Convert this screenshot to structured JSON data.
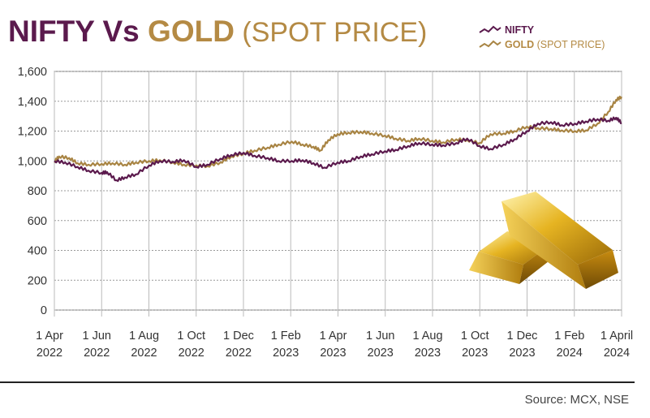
{
  "title": {
    "part1": "NIFTY",
    "part2": " Vs ",
    "part3": "GOLD",
    "part4": " (SPOT PRICE)"
  },
  "legend": {
    "nifty": "NIFTY",
    "gold_main": "GOLD",
    "gold_sub": " (SPOT PRICE)"
  },
  "source": "Source: MCX, NSE",
  "colors": {
    "nifty": "#5b1a4d",
    "gold": "#a88443",
    "grid_horizontal": "#999999",
    "grid_vertical": "#bbbbbb"
  },
  "image": "gold-bars",
  "chart_data": {
    "type": "line",
    "title": "NIFTY Vs GOLD (SPOT PRICE)",
    "xlabel": "",
    "ylabel": "",
    "ylim": [
      0,
      1600
    ],
    "xlim": [
      "2022-04-01",
      "2024-04-01"
    ],
    "y_ticks": [
      "0",
      "200",
      "400",
      "600",
      "800",
      "1,000",
      "1,200",
      "1,400",
      "1,600"
    ],
    "x_ticks": [
      {
        "line1": "1 Apr",
        "line2": "2022"
      },
      {
        "line1": "1 Jun",
        "line2": "2022"
      },
      {
        "line1": "1 Aug",
        "line2": "2022"
      },
      {
        "line1": "1 Oct",
        "line2": "2022"
      },
      {
        "line1": "1 Dec",
        "line2": "2022"
      },
      {
        "line1": "1 Feb",
        "line2": "2023"
      },
      {
        "line1": "1 Apr",
        "line2": "2023"
      },
      {
        "line1": "1 Jun",
        "line2": "2023"
      },
      {
        "line1": "1 Aug",
        "line2": "2023"
      },
      {
        "line1": "1 Oct",
        "line2": "2023"
      },
      {
        "line1": "1 Dec",
        "line2": "2023"
      },
      {
        "line1": "1 Feb",
        "line2": "2024"
      },
      {
        "line1": "1 April",
        "line2": "2024"
      }
    ],
    "grid": true,
    "legend_position": "top-right",
    "series": [
      {
        "name": "NIFTY",
        "points": [
          [
            "2022-04-01",
            1000
          ],
          [
            "2022-04-15",
            990
          ],
          [
            "2022-05-01",
            960
          ],
          [
            "2022-05-15",
            935
          ],
          [
            "2022-06-01",
            920
          ],
          [
            "2022-06-08",
            925
          ],
          [
            "2022-06-20",
            870
          ],
          [
            "2022-07-01",
            890
          ],
          [
            "2022-07-15",
            910
          ],
          [
            "2022-08-01",
            970
          ],
          [
            "2022-08-15",
            1000
          ],
          [
            "2022-09-01",
            995
          ],
          [
            "2022-09-15",
            1005
          ],
          [
            "2022-10-01",
            960
          ],
          [
            "2022-10-15",
            975
          ],
          [
            "2022-11-01",
            1015
          ],
          [
            "2022-11-15",
            1040
          ],
          [
            "2022-12-01",
            1055
          ],
          [
            "2022-12-15",
            1035
          ],
          [
            "2023-01-01",
            1020
          ],
          [
            "2023-01-15",
            1000
          ],
          [
            "2023-02-01",
            1000
          ],
          [
            "2023-02-15",
            1005
          ],
          [
            "2023-03-01",
            985
          ],
          [
            "2023-03-15",
            955
          ],
          [
            "2023-04-01",
            990
          ],
          [
            "2023-04-15",
            1000
          ],
          [
            "2023-05-01",
            1030
          ],
          [
            "2023-05-15",
            1045
          ],
          [
            "2023-06-01",
            1065
          ],
          [
            "2023-06-15",
            1075
          ],
          [
            "2023-07-01",
            1100
          ],
          [
            "2023-07-15",
            1120
          ],
          [
            "2023-08-01",
            1110
          ],
          [
            "2023-08-15",
            1105
          ],
          [
            "2023-09-01",
            1120
          ],
          [
            "2023-09-15",
            1150
          ],
          [
            "2023-10-01",
            1100
          ],
          [
            "2023-10-15",
            1080
          ],
          [
            "2023-11-01",
            1110
          ],
          [
            "2023-11-15",
            1145
          ],
          [
            "2023-12-01",
            1200
          ],
          [
            "2023-12-15",
            1250
          ],
          [
            "2024-01-01",
            1260
          ],
          [
            "2024-01-15",
            1240
          ],
          [
            "2024-02-01",
            1250
          ],
          [
            "2024-02-15",
            1265
          ],
          [
            "2024-03-01",
            1280
          ],
          [
            "2024-03-15",
            1270
          ],
          [
            "2024-03-25",
            1290
          ],
          [
            "2024-04-01",
            1255
          ]
        ]
      },
      {
        "name": "GOLD (SPOT PRICE)",
        "points": [
          [
            "2022-04-01",
            995
          ],
          [
            "2022-04-07",
            1030
          ],
          [
            "2022-04-20",
            1020
          ],
          [
            "2022-05-01",
            985
          ],
          [
            "2022-05-15",
            975
          ],
          [
            "2022-06-01",
            980
          ],
          [
            "2022-06-15",
            985
          ],
          [
            "2022-07-01",
            975
          ],
          [
            "2022-07-15",
            990
          ],
          [
            "2022-08-01",
            1000
          ],
          [
            "2022-08-15",
            1005
          ],
          [
            "2022-09-01",
            990
          ],
          [
            "2022-09-15",
            975
          ],
          [
            "2022-10-01",
            970
          ],
          [
            "2022-10-15",
            965
          ],
          [
            "2022-11-01",
            990
          ],
          [
            "2022-11-15",
            1030
          ],
          [
            "2022-12-01",
            1050
          ],
          [
            "2022-12-15",
            1070
          ],
          [
            "2023-01-01",
            1090
          ],
          [
            "2023-01-15",
            1110
          ],
          [
            "2023-02-01",
            1130
          ],
          [
            "2023-02-15",
            1110
          ],
          [
            "2023-03-01",
            1095
          ],
          [
            "2023-03-10",
            1070
          ],
          [
            "2023-03-20",
            1140
          ],
          [
            "2023-04-01",
            1180
          ],
          [
            "2023-04-15",
            1190
          ],
          [
            "2023-05-01",
            1195
          ],
          [
            "2023-05-15",
            1185
          ],
          [
            "2023-06-01",
            1170
          ],
          [
            "2023-06-15",
            1150
          ],
          [
            "2023-07-01",
            1135
          ],
          [
            "2023-07-15",
            1150
          ],
          [
            "2023-08-01",
            1135
          ],
          [
            "2023-08-15",
            1125
          ],
          [
            "2023-09-01",
            1145
          ],
          [
            "2023-09-15",
            1140
          ],
          [
            "2023-10-01",
            1120
          ],
          [
            "2023-10-15",
            1180
          ],
          [
            "2023-11-01",
            1185
          ],
          [
            "2023-11-15",
            1200
          ],
          [
            "2023-12-01",
            1230
          ],
          [
            "2023-12-15",
            1220
          ],
          [
            "2024-01-01",
            1215
          ],
          [
            "2024-01-15",
            1205
          ],
          [
            "2024-02-01",
            1200
          ],
          [
            "2024-02-15",
            1205
          ],
          [
            "2024-03-01",
            1250
          ],
          [
            "2024-03-15",
            1330
          ],
          [
            "2024-03-25",
            1410
          ],
          [
            "2024-04-01",
            1430
          ]
        ]
      }
    ]
  }
}
